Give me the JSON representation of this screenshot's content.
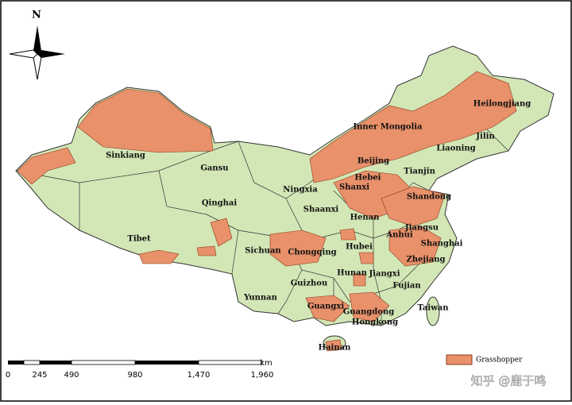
{
  "north": "N",
  "regions": [
    "Sinkiang",
    "Gansu",
    "Qinghai",
    "Tibet",
    "Inner Mongolia",
    "Heilongjiang",
    "Jilin",
    "Liaoning",
    "Beijing",
    "Tianjin",
    "Hebei",
    "Ningxia",
    "Shanxi",
    "Shaanxi",
    "Henan",
    "Shandong",
    "Jiangsu",
    "Anhui",
    "Shanghai",
    "Hubei",
    "Zhejiang",
    "Sichuan",
    "Chongqing",
    "Hunan",
    "Jiangxi",
    "Guizhou",
    "Fujian",
    "Yunnan",
    "Guangxi",
    "Guangdong",
    "Hongkong",
    "Taiwan",
    "Hainan"
  ],
  "scale": {
    "labels": [
      "0",
      "245",
      "490",
      "980",
      "1,470",
      "1,960"
    ],
    "unit": "km"
  },
  "legend": {
    "label": "Grasshopper"
  },
  "watermark": "知乎 @鹿于鸣"
}
